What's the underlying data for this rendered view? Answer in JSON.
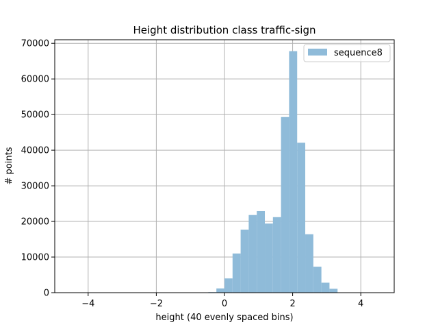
{
  "chart_data": {
    "type": "bar",
    "title": "Height distribution class traffic-sign",
    "xlabel": "height (40 evenly spaced bins)",
    "ylabel": "# points",
    "xlim": [
      -4.98,
      4.98
    ],
    "ylim": [
      0,
      71000
    ],
    "xticks": [
      -4,
      -2,
      0,
      2,
      4
    ],
    "xtick_labels": [
      "−4",
      "−2",
      "0",
      "2",
      "4"
    ],
    "yticks": [
      0,
      10000,
      20000,
      30000,
      40000,
      50000,
      60000,
      70000
    ],
    "ytick_labels": [
      "0",
      "10000",
      "20000",
      "30000",
      "40000",
      "50000",
      "60000",
      "70000"
    ],
    "grid": true,
    "legend_position": "top-right",
    "color": "#8fbbd9",
    "bin_start": -4.74,
    "bin_width": 0.237,
    "series": [
      {
        "name": "sequence8",
        "values": [
          0,
          0,
          0,
          0,
          0,
          0,
          0,
          0,
          0,
          0,
          0,
          0,
          0,
          0,
          0,
          0,
          0,
          0,
          150,
          1200,
          4000,
          11000,
          17700,
          21800,
          22900,
          19400,
          21200,
          49300,
          67800,
          42100,
          16400,
          7300,
          2800,
          1100,
          0,
          0,
          0,
          0,
          0,
          0
        ]
      }
    ]
  }
}
